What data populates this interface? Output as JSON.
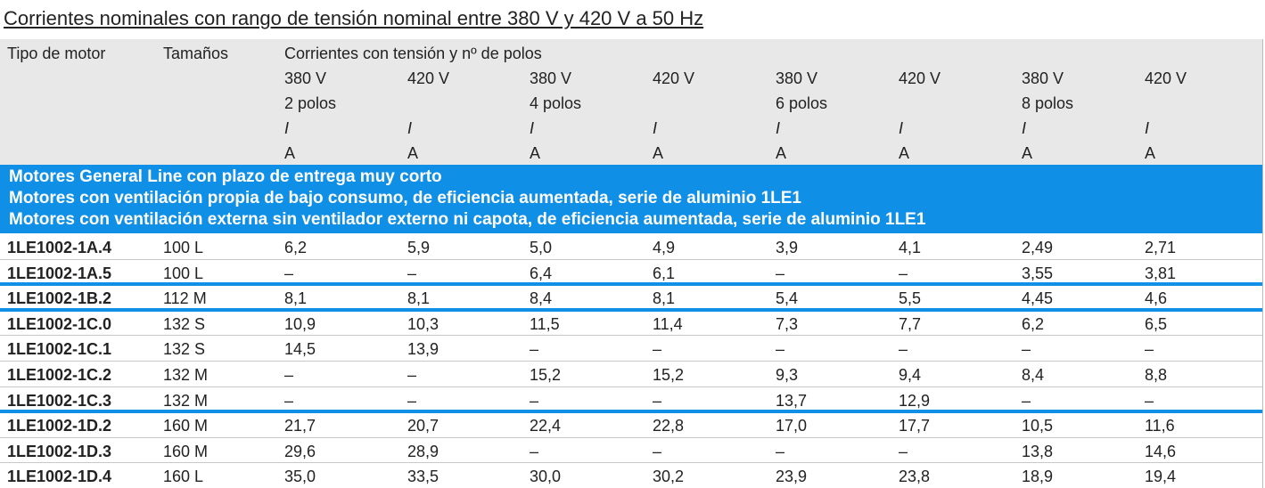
{
  "title": "Corrientes nominales con rango de tensión nominal entre 380 V y 420 V a 50 Hz",
  "header": {
    "motor_type": "Tipo de motor",
    "sizes": "Tamaños",
    "group": "Corrientes con tensión y nº de polos",
    "voltages": [
      "380 V",
      "420 V",
      "380 V",
      "420 V",
      "380 V",
      "420 V",
      "380 V",
      "420 V"
    ],
    "poles": [
      "2 polos",
      "4 polos",
      "6 polos",
      "8 polos"
    ],
    "symbol": "I",
    "unit": "A"
  },
  "section": [
    "Motores General Line con plazo de entrega muy corto",
    "Motores con ventilación propia de bajo consumo, de eficiencia aumentada, serie de aluminio 1LE1",
    "Motores con ventilación externa sin ventilador externo ni capota, de eficiencia aumentada, serie de aluminio 1LE1"
  ],
  "table": {
    "rows": [
      [
        "1LE1002-1A.4",
        "100 L",
        "6,2",
        "5,9",
        "5,0",
        "4,9",
        "3,9",
        "4,1",
        "2,49",
        "2,71"
      ],
      [
        "1LE1002-1A.5",
        "100 L",
        "–",
        "–",
        "6,4",
        "6,1",
        "–",
        "–",
        "3,55",
        "3,81"
      ],
      [
        "1LE1002-1B.2",
        "112 M",
        "8,1",
        "8,1",
        "8,4",
        "8,1",
        "5,4",
        "5,5",
        "4,45",
        "4,6"
      ],
      [
        "1LE1002-1C.0",
        "132 S",
        "10,9",
        "10,3",
        "11,5",
        "11,4",
        "7,3",
        "7,7",
        "6,2",
        "6,5"
      ],
      [
        "1LE1002-1C.1",
        "132 S",
        "14,5",
        "13,9",
        "–",
        "–",
        "–",
        "–",
        "–",
        "–"
      ],
      [
        "1LE1002-1C.2",
        "132 M",
        "–",
        "–",
        "15,2",
        "15,2",
        "9,3",
        "9,4",
        "8,4",
        "8,8"
      ],
      [
        "1LE1002-1C.3",
        "132 M",
        "–",
        "–",
        "–",
        "–",
        "13,7",
        "12,9",
        "–",
        "–"
      ],
      [
        "1LE1002-1D.2",
        "160 M",
        "21,7",
        "20,7",
        "22,4",
        "22,8",
        "17,0",
        "17,7",
        "10,5",
        "11,6"
      ],
      [
        "1LE1002-1D.3",
        "160 M",
        "29,6",
        "28,9",
        "–",
        "–",
        "–",
        "–",
        "13,8",
        "14,6"
      ],
      [
        "1LE1002-1D.4",
        "160 L",
        "35,0",
        "33,5",
        "30,0",
        "30,2",
        "23,9",
        "23,8",
        "18,9",
        "19,4"
      ]
    ]
  }
}
